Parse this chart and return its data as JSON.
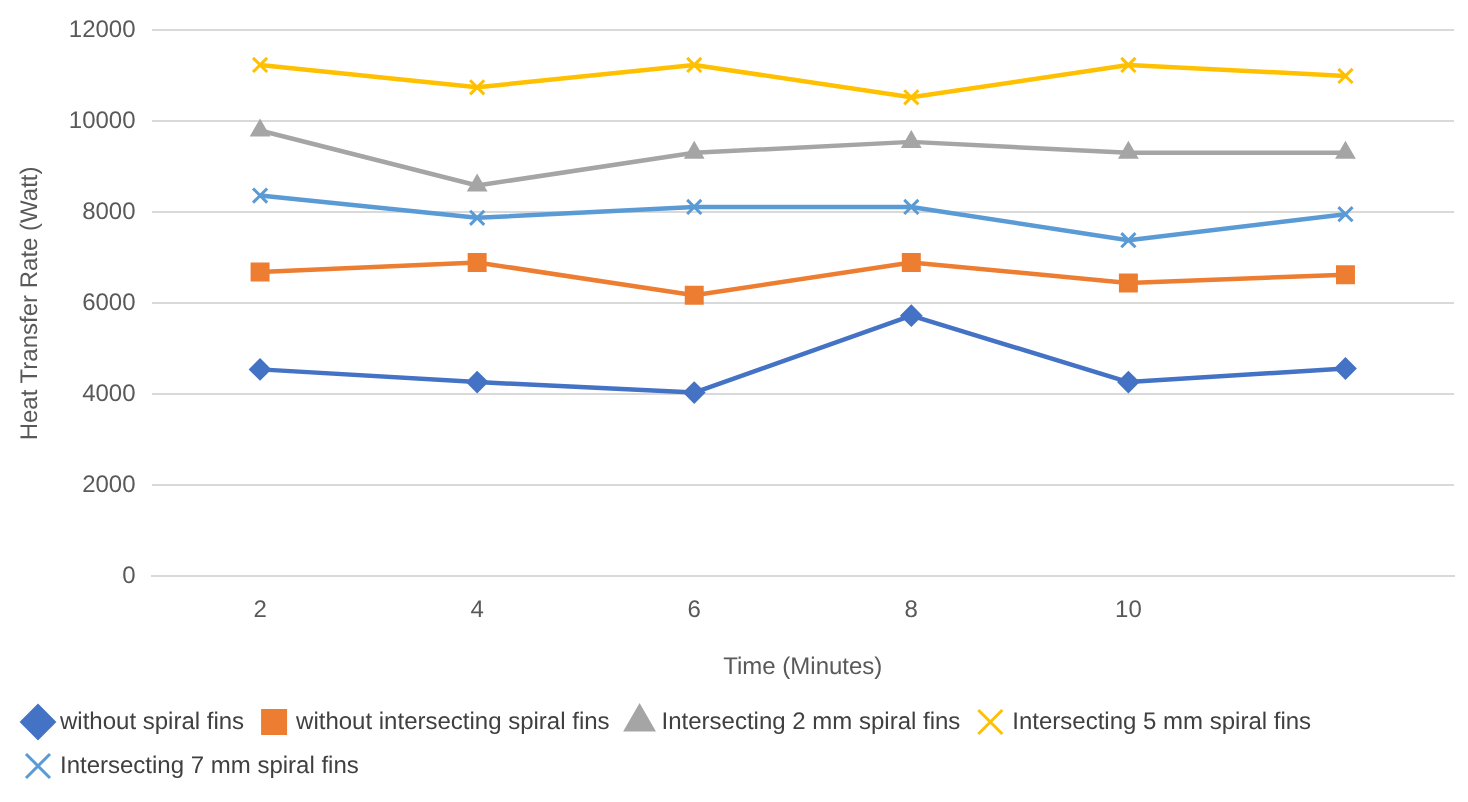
{
  "chart_data": {
    "type": "line",
    "xlabel": "Time (Minutes)",
    "ylabel": "Heat Transfer Rate (Watt)",
    "categories": [
      "2",
      "4",
      "6",
      "8",
      "10",
      null
    ],
    "ylim": [
      0,
      12000
    ],
    "yticks": [
      0,
      2000,
      4000,
      6000,
      8000,
      10000,
      12000
    ],
    "grid": "y",
    "legend": "bottom",
    "line_style": "solid",
    "series": [
      {
        "name": "without spiral fins",
        "color": "#4472c4",
        "marker": "diamond",
        "values": [
          4550,
          4270,
          4040,
          5730,
          4270,
          4570
        ]
      },
      {
        "name": "without intersecting spiral fins",
        "color": "#ed7d31",
        "marker": "square",
        "values": [
          6690,
          6900,
          6180,
          6900,
          6450,
          6630
        ]
      },
      {
        "name": "Intersecting 2 mm spiral fins",
        "color": "#a5a5a5",
        "marker": "triangle",
        "values": [
          9800,
          8590,
          9310,
          9550,
          9310,
          9310
        ]
      },
      {
        "name": "Intersecting 5 mm spiral fins",
        "color": "#ffc000",
        "marker": "cross",
        "values": [
          11240,
          10750,
          11240,
          10530,
          11240,
          11000
        ]
      },
      {
        "name": "Intersecting 7 mm spiral fins",
        "color": "#5b9bd5",
        "marker": "cross",
        "values": [
          8370,
          7880,
          8120,
          8120,
          7390,
          7960
        ]
      }
    ]
  }
}
